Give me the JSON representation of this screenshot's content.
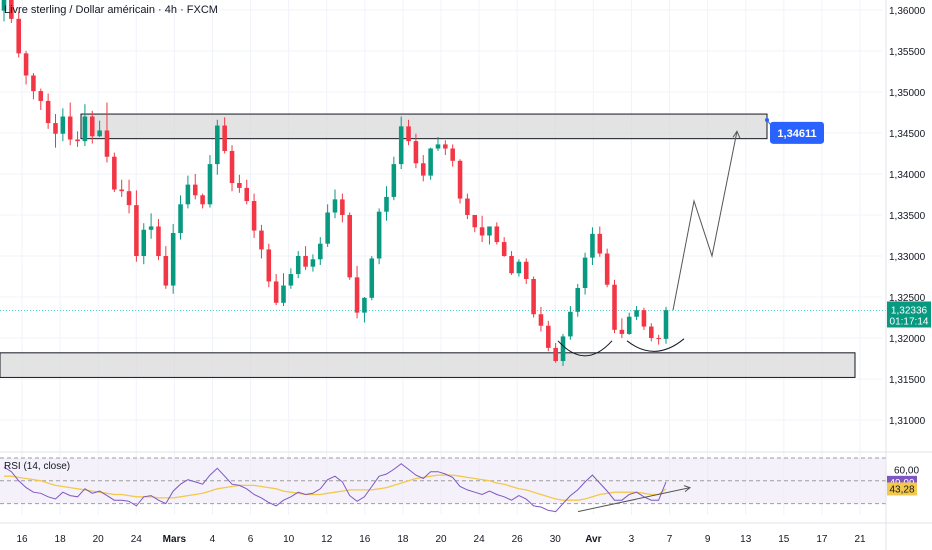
{
  "header": {
    "title": "Livre sterling / Dollar américain · 4h · FXCM"
  },
  "colors": {
    "up": "#089981",
    "down": "#f23645",
    "zone_fill": "#d9d9d9",
    "zone_stroke": "#131722",
    "target_badge": "#2962ff",
    "price_badge": "#089981",
    "price_line": "#4dd0c8",
    "rsi_line": "#7e57c2",
    "rsi_ma": "#f2c94c",
    "rsi_band": "#ede7f6",
    "projection": "#555555"
  },
  "chart_data": {
    "type": "candlestick",
    "symbol": "GBP/USD",
    "timeframe": "4h",
    "price_axis": {
      "ticks": [
        "1,36000",
        "1,35500",
        "1,35000",
        "1,34500",
        "1,34000",
        "1,33500",
        "1,33000",
        "1,32500",
        "1,32000",
        "1,31500",
        "1,31000"
      ],
      "tick_values": [
        1.36,
        1.355,
        1.35,
        1.345,
        1.34,
        1.335,
        1.33,
        1.325,
        1.32,
        1.315,
        1.31
      ],
      "ylim": [
        1.3066,
        1.3612
      ]
    },
    "time_axis": {
      "ticks": [
        "16",
        "18",
        "20",
        "24",
        "Mars",
        "4",
        "6",
        "10",
        "12",
        "16",
        "18",
        "20",
        "24",
        "26",
        "30",
        "Avr",
        "3",
        "7",
        "9",
        "13",
        "15",
        "17",
        "21"
      ],
      "bold_ticks": [
        "Mars",
        "Avr"
      ]
    },
    "last_price": {
      "value": 1.32336,
      "label": "1,32336",
      "countdown": "01:17:14"
    },
    "target": {
      "value": 1.34611,
      "label": "1,34611"
    },
    "resistance_zone": {
      "low": 1.3443,
      "high": 1.3473
    },
    "support_zone": {
      "low": 1.3152,
      "high": 1.3182
    },
    "projection_path": [
      1.3234,
      1.3367,
      1.33,
      1.3452
    ],
    "candles": {
      "open": [
        1.3599,
        1.3612,
        1.3589,
        1.3547,
        1.352,
        1.3501,
        1.3489,
        1.3462,
        1.3449,
        1.347,
        1.3442,
        1.344,
        1.347,
        1.3446,
        1.3453,
        1.3421,
        1.3381,
        1.3379,
        1.3362,
        1.33,
        1.3332,
        1.3336,
        1.33,
        1.3264,
        1.3328,
        1.3363,
        1.3387,
        1.3374,
        1.3363,
        1.3412,
        1.3459,
        1.3428,
        1.3389,
        1.3383,
        1.3367,
        1.3331,
        1.3308,
        1.3269,
        1.3243,
        1.3264,
        1.3278,
        1.33,
        1.3287,
        1.3296,
        1.3315,
        1.3353,
        1.3369,
        1.335,
        1.3274,
        1.3231,
        1.3249,
        1.3297,
        1.3354,
        1.3372,
        1.3412,
        1.3458,
        1.344,
        1.3413,
        1.3398,
        1.3431,
        1.3436,
        1.3431,
        1.3416,
        1.337,
        1.335,
        1.3335,
        1.3325,
        1.3336,
        1.3317,
        1.33,
        1.3279,
        1.3293,
        1.3272,
        1.3229,
        1.3215,
        1.3188,
        1.3172,
        1.3202,
        1.3232,
        1.3261,
        1.3298,
        1.3327,
        1.3303,
        1.3265,
        1.321,
        1.3205,
        1.3226,
        1.3234,
        1.3214,
        1.32,
        1.3199
      ],
      "high": [
        1.3617,
        1.3616,
        1.3598,
        1.355,
        1.3523,
        1.3504,
        1.3498,
        1.3473,
        1.348,
        1.3487,
        1.3452,
        1.3485,
        1.3477,
        1.3465,
        1.3487,
        1.3426,
        1.3393,
        1.3393,
        1.338,
        1.334,
        1.3352,
        1.3345,
        1.3312,
        1.3339,
        1.3374,
        1.3398,
        1.34,
        1.3376,
        1.3423,
        1.3466,
        1.3469,
        1.3435,
        1.3399,
        1.3393,
        1.3376,
        1.3338,
        1.3315,
        1.3278,
        1.3279,
        1.3285,
        1.3306,
        1.3312,
        1.3302,
        1.3323,
        1.3363,
        1.3381,
        1.3376,
        1.3353,
        1.3288,
        1.325,
        1.33,
        1.3358,
        1.3385,
        1.3421,
        1.347,
        1.3466,
        1.3449,
        1.3423,
        1.3432,
        1.3445,
        1.3441,
        1.3436,
        1.3418,
        1.3376,
        1.335,
        1.3349,
        1.3336,
        1.3341,
        1.3323,
        1.3306,
        1.3296,
        1.3297,
        1.3275,
        1.3238,
        1.3221,
        1.3194,
        1.3205,
        1.3239,
        1.3266,
        1.3304,
        1.3335,
        1.3336,
        1.3309,
        1.3271,
        1.3224,
        1.3231,
        1.3239,
        1.3237,
        1.3218,
        1.3204,
        1.3238
      ],
      "low": [
        1.3586,
        1.3584,
        1.3542,
        1.3509,
        1.3491,
        1.3478,
        1.3455,
        1.3432,
        1.344,
        1.3435,
        1.3433,
        1.3434,
        1.3437,
        1.3445,
        1.3414,
        1.3378,
        1.3372,
        1.3352,
        1.3293,
        1.329,
        1.3321,
        1.3295,
        1.326,
        1.3254,
        1.332,
        1.3358,
        1.3369,
        1.3358,
        1.3359,
        1.3399,
        1.3425,
        1.3379,
        1.3377,
        1.3363,
        1.3322,
        1.3297,
        1.3262,
        1.324,
        1.3239,
        1.326,
        1.3273,
        1.3283,
        1.3281,
        1.3289,
        1.3311,
        1.3346,
        1.3341,
        1.3271,
        1.3224,
        1.3219,
        1.3246,
        1.329,
        1.3343,
        1.3368,
        1.3406,
        1.3435,
        1.3407,
        1.3391,
        1.3393,
        1.3428,
        1.3423,
        1.3409,
        1.3364,
        1.3345,
        1.3329,
        1.3317,
        1.3314,
        1.3314,
        1.3299,
        1.3277,
        1.3275,
        1.3266,
        1.3225,
        1.3208,
        1.3184,
        1.317,
        1.3166,
        1.3198,
        1.3226,
        1.3253,
        1.3289,
        1.3299,
        1.3262,
        1.3206,
        1.32,
        1.3204,
        1.3222,
        1.321,
        1.3196,
        1.3192,
        1.3193
      ],
      "close": [
        1.3612,
        1.3589,
        1.3547,
        1.352,
        1.3501,
        1.3489,
        1.3462,
        1.3449,
        1.347,
        1.3442,
        1.344,
        1.347,
        1.3446,
        1.3453,
        1.3421,
        1.3381,
        1.3379,
        1.3362,
        1.33,
        1.3332,
        1.3336,
        1.33,
        1.3264,
        1.3328,
        1.3363,
        1.3387,
        1.3374,
        1.3363,
        1.3412,
        1.3459,
        1.3428,
        1.3389,
        1.3383,
        1.3367,
        1.3331,
        1.3308,
        1.3269,
        1.3243,
        1.3264,
        1.3278,
        1.33,
        1.3287,
        1.3296,
        1.3315,
        1.3353,
        1.3369,
        1.335,
        1.3274,
        1.3231,
        1.3249,
        1.3297,
        1.3354,
        1.3372,
        1.3412,
        1.3458,
        1.344,
        1.3413,
        1.3398,
        1.3431,
        1.3436,
        1.3431,
        1.3416,
        1.337,
        1.335,
        1.3335,
        1.3325,
        1.3336,
        1.3317,
        1.33,
        1.3279,
        1.3293,
        1.3272,
        1.3229,
        1.3215,
        1.3188,
        1.3172,
        1.3202,
        1.3232,
        1.3261,
        1.3298,
        1.3327,
        1.3303,
        1.3265,
        1.321,
        1.3205,
        1.3226,
        1.3234,
        1.3214,
        1.32,
        1.3199,
        1.3234
      ]
    },
    "rsi": {
      "label": "RSI (14, close)",
      "ylim": [
        20,
        70
      ],
      "band": [
        30,
        70
      ],
      "ticks": [
        "60,00"
      ],
      "tick_values": [
        60
      ],
      "current": {
        "value": 49.09,
        "label": "49,09"
      },
      "ma_current": {
        "value": 43.28,
        "label": "43,28"
      },
      "values": [
        62,
        58,
        50,
        44,
        40,
        39,
        36,
        34,
        40,
        37,
        36,
        43,
        39,
        41,
        37,
        33,
        33,
        32,
        28,
        36,
        37,
        33,
        30,
        41,
        47,
        51,
        49,
        47,
        55,
        61,
        54,
        47,
        46,
        43,
        38,
        35,
        31,
        28,
        33,
        36,
        40,
        38,
        39,
        43,
        51,
        54,
        49,
        37,
        32,
        36,
        45,
        54,
        56,
        60,
        65,
        60,
        55,
        52,
        58,
        58,
        56,
        53,
        45,
        42,
        40,
        38,
        41,
        38,
        36,
        33,
        37,
        34,
        28,
        27,
        24,
        23,
        30,
        37,
        42,
        49,
        55,
        48,
        41,
        33,
        33,
        38,
        40,
        36,
        33,
        33,
        49
      ],
      "ma": [
        54,
        54,
        53,
        52,
        51,
        50,
        48,
        46,
        45,
        44,
        43,
        42,
        41,
        40,
        39,
        38,
        38,
        37,
        36,
        36,
        36,
        35,
        35,
        35,
        36,
        37,
        38,
        39,
        41,
        43,
        44,
        45,
        46,
        46,
        46,
        45,
        44,
        43,
        41,
        40,
        39,
        38,
        38,
        38,
        39,
        40,
        41,
        42,
        42,
        42,
        42,
        43,
        44,
        46,
        48,
        50,
        52,
        53,
        54,
        55,
        55,
        55,
        54,
        53,
        52,
        51,
        50,
        48,
        47,
        45,
        43,
        42,
        40,
        38,
        36,
        34,
        33,
        33,
        33,
        34,
        36,
        38,
        39,
        40,
        40,
        40,
        40,
        39,
        38,
        38,
        43
      ],
      "divergence_line": [
        23,
        44
      ]
    }
  }
}
